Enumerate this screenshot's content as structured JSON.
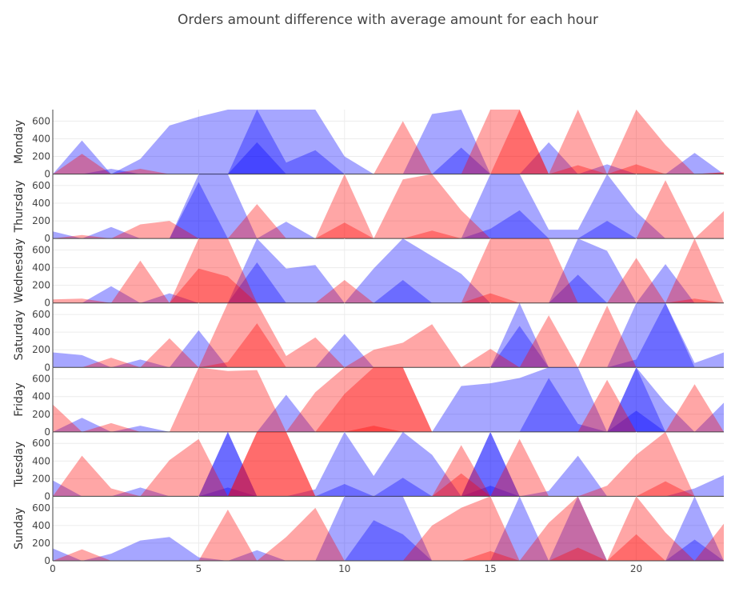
{
  "chart_data": {
    "type": "area",
    "title": "Orders amount difference with average amount for each hour",
    "x": [
      0,
      1,
      2,
      3,
      4,
      5,
      6,
      7,
      8,
      9,
      10,
      11,
      12,
      13,
      14,
      15,
      16,
      17,
      18,
      19,
      20,
      21,
      22,
      23
    ],
    "x_ticks": [
      0,
      5,
      10,
      15,
      20
    ],
    "ylim": [
      0,
      730
    ],
    "y_ticks": [
      0,
      200,
      400,
      600
    ],
    "colors": {
      "positive": "#ff0000",
      "negative": "#0000ff",
      "positive_alpha": 0.35,
      "negative_alpha": 0.35
    },
    "panels": [
      {
        "name": "Monday",
        "red": [
          [
            0,
            230,
            0,
            0,
            0,
            0,
            0,
            0,
            0,
            0,
            0,
            0,
            600,
            0,
            0,
            730,
            730,
            0,
            730,
            0,
            730,
            330,
            0,
            20
          ],
          [
            0,
            0,
            0,
            60,
            0,
            0,
            0,
            0,
            0,
            0,
            0,
            0,
            0,
            0,
            0,
            0,
            730,
            0,
            100,
            0,
            110,
            0,
            0,
            20
          ]
        ],
        "blue": [
          [
            0,
            380,
            0,
            170,
            550,
            650,
            730,
            730,
            730,
            730,
            200,
            0,
            0,
            680,
            730,
            0,
            0,
            360,
            0,
            0,
            0,
            0,
            240,
            0
          ],
          [
            0,
            0,
            60,
            0,
            0,
            0,
            0,
            730,
            130,
            270,
            0,
            0,
            0,
            0,
            300,
            0,
            0,
            0,
            0,
            110,
            0,
            0,
            0,
            0
          ],
          [
            0,
            0,
            0,
            0,
            0,
            0,
            0,
            360,
            0,
            0,
            0,
            0,
            0,
            0,
            0,
            0,
            0,
            0,
            0,
            0,
            0,
            0,
            0,
            0
          ]
        ]
      },
      {
        "name": "Thursday",
        "red": [
          [
            0,
            40,
            0,
            160,
            200,
            0,
            0,
            390,
            0,
            0,
            730,
            0,
            670,
            730,
            320,
            0,
            0,
            0,
            0,
            0,
            0,
            660,
            0,
            310
          ],
          [
            0,
            0,
            0,
            0,
            0,
            0,
            0,
            0,
            0,
            0,
            180,
            0,
            0,
            90,
            0,
            0,
            0,
            0,
            0,
            0,
            0,
            0,
            0,
            0
          ]
        ],
        "blue": [
          [
            80,
            0,
            130,
            0,
            0,
            730,
            730,
            0,
            190,
            0,
            0,
            0,
            0,
            0,
            0,
            730,
            730,
            100,
            100,
            730,
            300,
            0,
            0,
            0
          ],
          [
            0,
            0,
            0,
            0,
            0,
            640,
            0,
            0,
            0,
            0,
            0,
            0,
            0,
            0,
            0,
            110,
            320,
            0,
            0,
            200,
            0,
            0,
            0,
            0
          ]
        ]
      },
      {
        "name": "Wednesday",
        "red": [
          [
            40,
            50,
            0,
            480,
            0,
            730,
            730,
            0,
            0,
            0,
            260,
            0,
            0,
            0,
            0,
            730,
            730,
            730,
            0,
            0,
            510,
            0,
            730,
            0
          ],
          [
            0,
            0,
            0,
            0,
            0,
            390,
            300,
            0,
            0,
            0,
            0,
            0,
            0,
            0,
            0,
            110,
            0,
            0,
            0,
            0,
            0,
            0,
            50,
            0
          ]
        ],
        "blue": [
          [
            0,
            0,
            190,
            0,
            110,
            0,
            0,
            730,
            390,
            430,
            0,
            390,
            730,
            530,
            330,
            0,
            0,
            0,
            730,
            590,
            0,
            440,
            0,
            0
          ],
          [
            0,
            0,
            0,
            0,
            0,
            0,
            0,
            460,
            0,
            0,
            0,
            0,
            260,
            0,
            0,
            0,
            0,
            0,
            320,
            0,
            0,
            0,
            0,
            0
          ]
        ]
      },
      {
        "name": "Saturday",
        "red": [
          [
            0,
            0,
            110,
            0,
            330,
            0,
            730,
            730,
            130,
            340,
            0,
            200,
            280,
            490,
            0,
            210,
            0,
            590,
            0,
            700,
            0,
            0,
            0,
            0
          ],
          [
            0,
            0,
            0,
            0,
            0,
            0,
            60,
            500,
            0,
            0,
            0,
            0,
            0,
            0,
            0,
            0,
            0,
            0,
            0,
            0,
            0,
            0,
            0,
            0
          ]
        ],
        "blue": [
          [
            170,
            140,
            0,
            90,
            0,
            420,
            0,
            0,
            0,
            0,
            380,
            0,
            0,
            0,
            0,
            0,
            730,
            0,
            0,
            0,
            730,
            730,
            50,
            170
          ],
          [
            0,
            0,
            0,
            0,
            0,
            0,
            0,
            0,
            0,
            0,
            0,
            0,
            0,
            0,
            0,
            0,
            470,
            0,
            0,
            0,
            90,
            730,
            0,
            0
          ]
        ]
      },
      {
        "name": "Friday",
        "red": [
          [
            310,
            0,
            100,
            0,
            0,
            730,
            690,
            700,
            0,
            450,
            730,
            730,
            730,
            0,
            0,
            0,
            0,
            0,
            0,
            590,
            0,
            0,
            540,
            0
          ],
          [
            0,
            0,
            0,
            0,
            0,
            0,
            0,
            0,
            0,
            0,
            430,
            730,
            730,
            0,
            0,
            0,
            0,
            0,
            0,
            0,
            0,
            0,
            0,
            0
          ],
          [
            0,
            0,
            0,
            0,
            0,
            0,
            0,
            0,
            0,
            0,
            0,
            70,
            0,
            0,
            0,
            0,
            0,
            0,
            0,
            0,
            0,
            0,
            0,
            0
          ]
        ],
        "blue": [
          [
            0,
            160,
            0,
            70,
            0,
            0,
            0,
            0,
            420,
            0,
            0,
            0,
            0,
            0,
            520,
            550,
            610,
            730,
            730,
            0,
            730,
            330,
            0,
            330
          ],
          [
            0,
            0,
            0,
            0,
            0,
            0,
            0,
            0,
            0,
            0,
            0,
            0,
            0,
            0,
            0,
            0,
            0,
            610,
            90,
            0,
            730,
            0,
            0,
            0
          ],
          [
            0,
            0,
            0,
            0,
            0,
            0,
            0,
            0,
            0,
            0,
            0,
            0,
            0,
            0,
            0,
            0,
            0,
            0,
            0,
            0,
            240,
            0,
            0,
            0
          ]
        ]
      },
      {
        "name": "Tuesday",
        "red": [
          [
            0,
            460,
            90,
            0,
            410,
            650,
            0,
            730,
            730,
            0,
            0,
            0,
            0,
            0,
            580,
            0,
            650,
            0,
            0,
            120,
            470,
            730,
            0,
            0
          ],
          [
            0,
            0,
            0,
            0,
            0,
            0,
            0,
            730,
            730,
            0,
            0,
            0,
            0,
            0,
            260,
            0,
            0,
            0,
            0,
            0,
            0,
            170,
            0,
            0
          ]
        ],
        "blue": [
          [
            180,
            0,
            0,
            100,
            0,
            0,
            730,
            0,
            0,
            80,
            730,
            230,
            730,
            470,
            0,
            730,
            0,
            60,
            460,
            0,
            0,
            0,
            90,
            240
          ],
          [
            0,
            0,
            0,
            0,
            0,
            0,
            730,
            0,
            0,
            0,
            140,
            0,
            210,
            0,
            0,
            730,
            0,
            0,
            0,
            0,
            0,
            0,
            0,
            0
          ],
          [
            0,
            0,
            0,
            0,
            0,
            0,
            100,
            0,
            0,
            0,
            0,
            0,
            0,
            0,
            0,
            120,
            0,
            0,
            0,
            0,
            0,
            0,
            0,
            0
          ]
        ]
      },
      {
        "name": "Sunday",
        "red": [
          [
            0,
            130,
            0,
            0,
            0,
            0,
            580,
            0,
            270,
            600,
            0,
            0,
            0,
            400,
            600,
            730,
            0,
            430,
            730,
            0,
            730,
            320,
            0,
            420
          ],
          [
            0,
            0,
            0,
            0,
            0,
            0,
            0,
            0,
            0,
            0,
            0,
            0,
            0,
            0,
            0,
            110,
            0,
            0,
            150,
            0,
            300,
            0,
            0,
            0
          ]
        ],
        "blue": [
          [
            140,
            0,
            80,
            230,
            270,
            40,
            0,
            120,
            0,
            0,
            730,
            730,
            730,
            0,
            0,
            0,
            730,
            0,
            730,
            0,
            0,
            0,
            730,
            0
          ],
          [
            0,
            0,
            0,
            0,
            0,
            0,
            0,
            0,
            0,
            0,
            0,
            460,
            300,
            0,
            0,
            0,
            0,
            0,
            0,
            0,
            0,
            0,
            240,
            0
          ]
        ]
      }
    ]
  }
}
